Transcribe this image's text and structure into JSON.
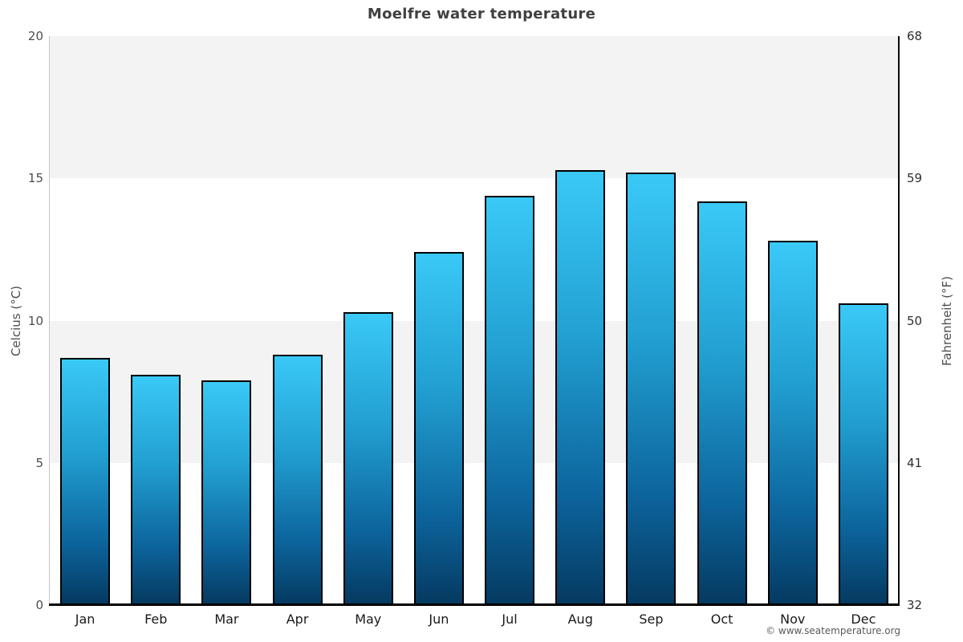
{
  "title": "Moelfre water temperature",
  "footer": "© www.seatemperature.org",
  "chart_data": {
    "type": "bar",
    "title": "Moelfre water temperature",
    "categories": [
      "Jan",
      "Feb",
      "Mar",
      "Apr",
      "May",
      "Jun",
      "Jul",
      "Aug",
      "Sep",
      "Oct",
      "Nov",
      "Dec"
    ],
    "values": [
      8.7,
      8.1,
      7.9,
      8.8,
      10.3,
      12.4,
      14.4,
      15.3,
      15.2,
      14.2,
      12.8,
      10.6
    ],
    "ylabel_left": "Celcius (°C)",
    "ylabel_right": "Fahrenheit (°F)",
    "yticks_left": [
      0,
      5,
      10,
      15,
      20
    ],
    "yticks_right": [
      32,
      41,
      50,
      59,
      68
    ],
    "ylim": [
      0,
      20
    ],
    "grid": "alternating-horizontal-bands",
    "legend": "none",
    "colors": {
      "bar_gradient_top": "#3ac9f7",
      "bar_gradient_bottom": "#053a61",
      "bar_border": "#000000",
      "band": "#f3f3f3",
      "title_text": "#404040",
      "axis_right_spine": "#0a0a0a",
      "axis_left_spine": "#c6c6c6"
    }
  }
}
